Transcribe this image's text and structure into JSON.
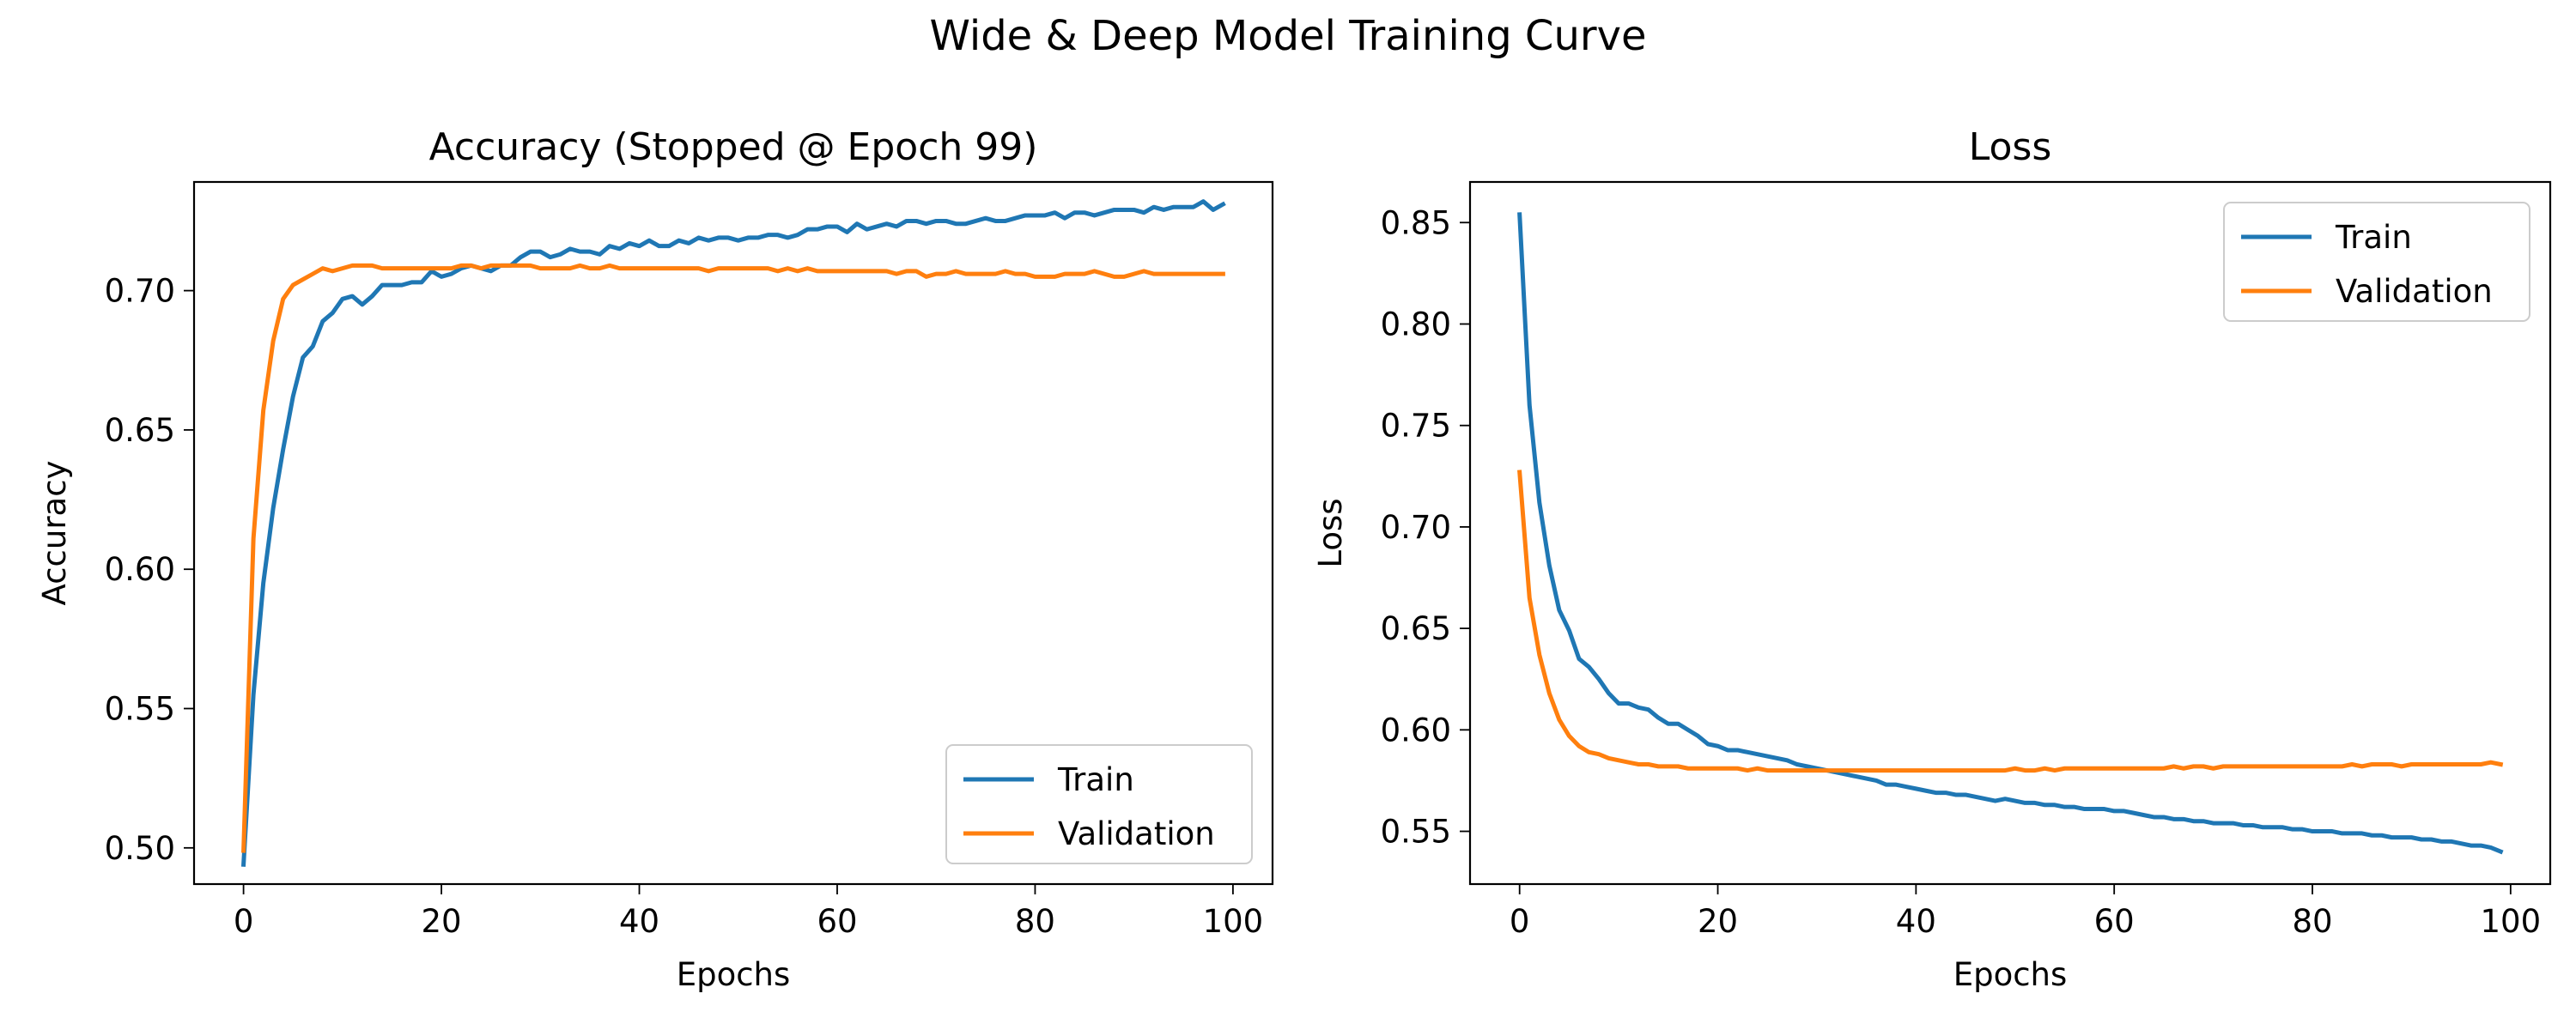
{
  "figure_title": "Wide & Deep Model Training Curve",
  "colors": {
    "train": "#1f77b4",
    "validation": "#ff7f0e"
  },
  "chart_data": [
    {
      "type": "line",
      "title": "Accuracy (Stopped @ Epoch 99)",
      "xlabel": "Epochs",
      "ylabel": "Accuracy",
      "xlim": [
        -5,
        104
      ],
      "ylim": [
        0.487,
        0.739
      ],
      "xticks": [
        0,
        20,
        40,
        60,
        80,
        100
      ],
      "xtick_labels": [
        "0",
        "20",
        "40",
        "60",
        "80",
        "100"
      ],
      "yticks": [
        0.5,
        0.55,
        0.6,
        0.65,
        0.7
      ],
      "ytick_labels": [
        "0.50",
        "0.55",
        "0.60",
        "0.65",
        "0.70"
      ],
      "grid": false,
      "legend_position": "lower-right",
      "series": [
        {
          "name": "Train",
          "color": "#1f77b4",
          "x_start": 0,
          "values": [
            0.494,
            0.555,
            0.595,
            0.622,
            0.643,
            0.662,
            0.676,
            0.68,
            0.689,
            0.692,
            0.697,
            0.698,
            0.695,
            0.698,
            0.702,
            0.702,
            0.702,
            0.703,
            0.703,
            0.707,
            0.705,
            0.706,
            0.708,
            0.709,
            0.708,
            0.707,
            0.709,
            0.709,
            0.712,
            0.714,
            0.714,
            0.712,
            0.713,
            0.715,
            0.714,
            0.714,
            0.713,
            0.716,
            0.715,
            0.717,
            0.716,
            0.718,
            0.716,
            0.716,
            0.718,
            0.717,
            0.719,
            0.718,
            0.719,
            0.719,
            0.718,
            0.719,
            0.719,
            0.72,
            0.72,
            0.719,
            0.72,
            0.722,
            0.722,
            0.723,
            0.723,
            0.721,
            0.724,
            0.722,
            0.723,
            0.724,
            0.723,
            0.725,
            0.725,
            0.724,
            0.725,
            0.725,
            0.724,
            0.724,
            0.725,
            0.726,
            0.725,
            0.725,
            0.726,
            0.727,
            0.727,
            0.727,
            0.728,
            0.726,
            0.728,
            0.728,
            0.727,
            0.728,
            0.729,
            0.729,
            0.729,
            0.728,
            0.73,
            0.729,
            0.73,
            0.73,
            0.73,
            0.732,
            0.729,
            0.731
          ]
        },
        {
          "name": "Validation",
          "color": "#ff7f0e",
          "x_start": 0,
          "values": [
            0.499,
            0.611,
            0.657,
            0.682,
            0.697,
            0.702,
            0.704,
            0.706,
            0.708,
            0.707,
            0.708,
            0.709,
            0.709,
            0.709,
            0.708,
            0.708,
            0.708,
            0.708,
            0.708,
            0.708,
            0.708,
            0.708,
            0.709,
            0.709,
            0.708,
            0.709,
            0.709,
            0.709,
            0.709,
            0.709,
            0.708,
            0.708,
            0.708,
            0.708,
            0.709,
            0.708,
            0.708,
            0.709,
            0.708,
            0.708,
            0.708,
            0.708,
            0.708,
            0.708,
            0.708,
            0.708,
            0.708,
            0.707,
            0.708,
            0.708,
            0.708,
            0.708,
            0.708,
            0.708,
            0.707,
            0.708,
            0.707,
            0.708,
            0.707,
            0.707,
            0.707,
            0.707,
            0.707,
            0.707,
            0.707,
            0.707,
            0.706,
            0.707,
            0.707,
            0.705,
            0.706,
            0.706,
            0.707,
            0.706,
            0.706,
            0.706,
            0.706,
            0.707,
            0.706,
            0.706,
            0.705,
            0.705,
            0.705,
            0.706,
            0.706,
            0.706,
            0.707,
            0.706,
            0.705,
            0.705,
            0.706,
            0.707,
            0.706,
            0.706,
            0.706,
            0.706,
            0.706,
            0.706,
            0.706,
            0.706
          ]
        }
      ]
    },
    {
      "type": "line",
      "title": "Loss",
      "xlabel": "Epochs",
      "ylabel": "Loss",
      "xlim": [
        -5,
        104
      ],
      "ylim": [
        0.524,
        0.87
      ],
      "xticks": [
        0,
        20,
        40,
        60,
        80,
        100
      ],
      "xtick_labels": [
        "0",
        "20",
        "40",
        "60",
        "80",
        "100"
      ],
      "yticks": [
        0.55,
        0.6,
        0.65,
        0.7,
        0.75,
        0.8,
        0.85
      ],
      "ytick_labels": [
        "0.55",
        "0.60",
        "0.65",
        "0.70",
        "0.75",
        "0.80",
        "0.85"
      ],
      "grid": false,
      "legend_position": "upper-right",
      "series": [
        {
          "name": "Train",
          "color": "#1f77b4",
          "x_start": 0,
          "values": [
            0.854,
            0.76,
            0.712,
            0.681,
            0.659,
            0.649,
            0.635,
            0.631,
            0.625,
            0.618,
            0.613,
            0.613,
            0.611,
            0.61,
            0.606,
            0.603,
            0.603,
            0.6,
            0.597,
            0.593,
            0.592,
            0.59,
            0.59,
            0.589,
            0.588,
            0.587,
            0.586,
            0.585,
            0.583,
            0.582,
            0.581,
            0.58,
            0.579,
            0.578,
            0.577,
            0.576,
            0.575,
            0.573,
            0.573,
            0.572,
            0.571,
            0.57,
            0.569,
            0.569,
            0.568,
            0.568,
            0.567,
            0.566,
            0.565,
            0.566,
            0.565,
            0.564,
            0.564,
            0.563,
            0.563,
            0.562,
            0.562,
            0.561,
            0.561,
            0.561,
            0.56,
            0.56,
            0.559,
            0.558,
            0.557,
            0.557,
            0.556,
            0.556,
            0.555,
            0.555,
            0.554,
            0.554,
            0.554,
            0.553,
            0.553,
            0.552,
            0.552,
            0.552,
            0.551,
            0.551,
            0.55,
            0.55,
            0.55,
            0.549,
            0.549,
            0.549,
            0.548,
            0.548,
            0.547,
            0.547,
            0.547,
            0.546,
            0.546,
            0.545,
            0.545,
            0.544,
            0.543,
            0.543,
            0.542,
            0.54
          ]
        },
        {
          "name": "Validation",
          "color": "#ff7f0e",
          "x_start": 0,
          "values": [
            0.727,
            0.665,
            0.637,
            0.618,
            0.605,
            0.597,
            0.592,
            0.589,
            0.588,
            0.586,
            0.585,
            0.584,
            0.583,
            0.583,
            0.582,
            0.582,
            0.582,
            0.581,
            0.581,
            0.581,
            0.581,
            0.581,
            0.581,
            0.58,
            0.581,
            0.58,
            0.58,
            0.58,
            0.58,
            0.58,
            0.58,
            0.58,
            0.58,
            0.58,
            0.58,
            0.58,
            0.58,
            0.58,
            0.58,
            0.58,
            0.58,
            0.58,
            0.58,
            0.58,
            0.58,
            0.58,
            0.58,
            0.58,
            0.58,
            0.58,
            0.581,
            0.58,
            0.58,
            0.581,
            0.58,
            0.581,
            0.581,
            0.581,
            0.581,
            0.581,
            0.581,
            0.581,
            0.581,
            0.581,
            0.581,
            0.581,
            0.582,
            0.581,
            0.582,
            0.582,
            0.581,
            0.582,
            0.582,
            0.582,
            0.582,
            0.582,
            0.582,
            0.582,
            0.582,
            0.582,
            0.582,
            0.582,
            0.582,
            0.582,
            0.583,
            0.582,
            0.583,
            0.583,
            0.583,
            0.582,
            0.583,
            0.583,
            0.583,
            0.583,
            0.583,
            0.583,
            0.583,
            0.583,
            0.584,
            0.583
          ]
        }
      ]
    }
  ]
}
